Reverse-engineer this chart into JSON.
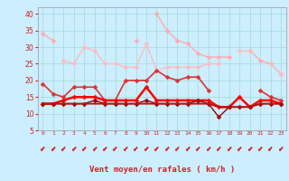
{
  "x": [
    0,
    1,
    2,
    3,
    4,
    5,
    6,
    7,
    8,
    9,
    10,
    11,
    12,
    13,
    14,
    15,
    16,
    17,
    18,
    19,
    20,
    21,
    22,
    23
  ],
  "series": [
    {
      "values": [
        34,
        32,
        null,
        null,
        null,
        null,
        null,
        null,
        null,
        32,
        null,
        40,
        35,
        32,
        31,
        28,
        27,
        27,
        27,
        null,
        29,
        26,
        25,
        22
      ],
      "color": "#ffaaaa",
      "lw": 1.0,
      "marker": "D",
      "ms": 2.5
    },
    {
      "values": [
        null,
        null,
        26,
        25,
        30,
        29,
        25,
        25,
        24,
        24,
        31,
        23,
        24,
        24,
        24,
        24,
        25,
        25,
        null,
        29,
        29,
        null,
        25,
        22
      ],
      "color": "#ffbbbb",
      "lw": 1.0,
      "marker": "D",
      "ms": 2.5
    },
    {
      "values": [
        19,
        16,
        15,
        18,
        18,
        18,
        14,
        14,
        20,
        20,
        20,
        23,
        21,
        20,
        21,
        21,
        17,
        null,
        null,
        null,
        null,
        17,
        15,
        14
      ],
      "color": "#dd3333",
      "lw": 1.2,
      "marker": "D",
      "ms": 2.5
    },
    {
      "values": [
        13,
        13,
        14,
        15,
        15,
        15,
        14,
        14,
        14,
        14,
        18,
        14,
        14,
        14,
        14,
        14,
        14,
        12,
        12,
        15,
        12,
        14,
        14,
        13
      ],
      "color": "#ff0000",
      "lw": 1.8,
      "marker": "D",
      "ms": 2.5
    },
    {
      "values": [
        13,
        13,
        13,
        13,
        13,
        14,
        13,
        13,
        13,
        13,
        14,
        13,
        13,
        13,
        13,
        14,
        13,
        9,
        12,
        12,
        12,
        13,
        13,
        13
      ],
      "color": "#990000",
      "lw": 1.0,
      "marker": "D",
      "ms": 2.5
    },
    {
      "values": [
        13,
        13,
        13,
        13,
        13,
        13,
        13,
        13,
        13,
        13,
        13,
        13,
        13,
        13,
        13,
        13,
        13,
        12,
        12,
        12,
        12,
        13,
        13,
        13
      ],
      "color": "#bb1111",
      "lw": 1.4,
      "marker": null,
      "ms": 0
    }
  ],
  "xlabel": "Vent moyen/en rafales ( km/h )",
  "ylim": [
    5,
    42
  ],
  "yticks": [
    5,
    10,
    15,
    20,
    25,
    30,
    35,
    40
  ],
  "bg_color": "#cceeff",
  "grid_color": "#aadddd",
  "tick_color": "#cc2222",
  "label_color": "#cc2222"
}
